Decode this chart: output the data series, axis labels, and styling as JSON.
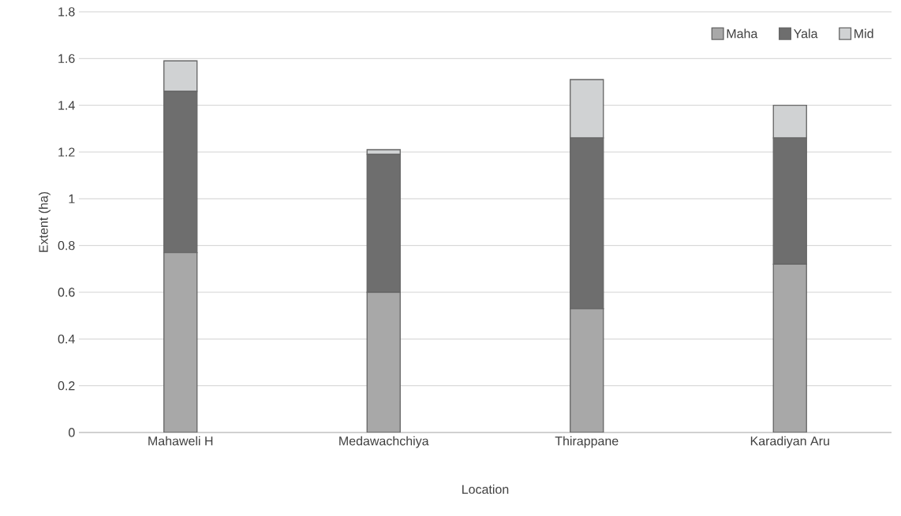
{
  "chart_data": {
    "type": "bar",
    "stacked": true,
    "xlabel": "Location",
    "ylabel": "Extent (ha)",
    "categories": [
      "Mahaweli H",
      "Medawachchiya",
      "Thirappane",
      "Karadiyan Aru"
    ],
    "series": [
      {
        "name": "Maha",
        "color": "#a8a8a8",
        "values": [
          0.77,
          0.6,
          0.53,
          0.72
        ]
      },
      {
        "name": "Yala",
        "color": "#6e6e6e",
        "values": [
          0.69,
          0.59,
          0.73,
          0.54
        ]
      },
      {
        "name": "Mid",
        "color": "#d0d2d3",
        "values": [
          0.13,
          0.02,
          0.25,
          0.14
        ]
      }
    ],
    "ylim": [
      0,
      1.8
    ],
    "yticks": [
      0,
      0.2,
      0.4,
      0.6,
      0.8,
      1,
      1.2,
      1.4,
      1.6,
      1.8
    ],
    "grid": "y",
    "legend": "top right"
  }
}
